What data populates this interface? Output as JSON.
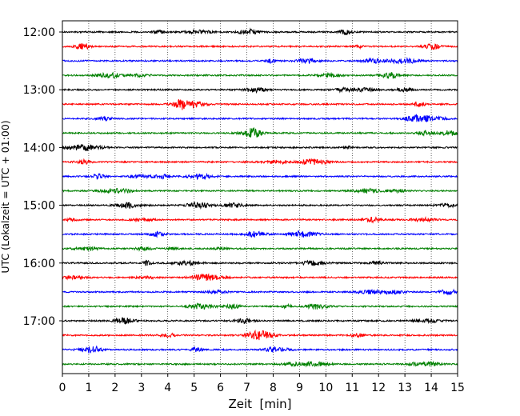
{
  "chart_data": {
    "type": "line",
    "title": "",
    "xlabel": "Zeit  [min]",
    "ylabel": "UTC (Lokalzeit = UTC + 01:00)",
    "xlim": [
      0,
      15
    ],
    "x_ticks": [
      0,
      1,
      2,
      3,
      4,
      5,
      6,
      7,
      8,
      9,
      10,
      11,
      12,
      13,
      14,
      15
    ],
    "y_tick_labels": [
      "12:00",
      "13:00",
      "14:00",
      "15:00",
      "16:00",
      "17:00"
    ],
    "traces_per_hour": 4,
    "trace_minutes": 15,
    "grid": "vertical dotted at each minute",
    "trace_colors": [
      "#000000",
      "#ff0000",
      "#0000ff",
      "#008000"
    ],
    "series": [
      {
        "start": "12:00"
      },
      {
        "start": "12:15"
      },
      {
        "start": "12:30"
      },
      {
        "start": "12:45"
      },
      {
        "start": "13:00"
      },
      {
        "start": "13:15"
      },
      {
        "start": "13:30"
      },
      {
        "start": "13:45"
      },
      {
        "start": "14:00"
      },
      {
        "start": "14:15"
      },
      {
        "start": "14:30"
      },
      {
        "start": "14:45"
      },
      {
        "start": "15:00"
      },
      {
        "start": "15:15"
      },
      {
        "start": "15:30"
      },
      {
        "start": "15:45"
      },
      {
        "start": "16:00"
      },
      {
        "start": "16:15"
      },
      {
        "start": "16:30"
      },
      {
        "start": "16:45"
      },
      {
        "start": "17:00"
      },
      {
        "start": "17:15"
      },
      {
        "start": "17:30"
      },
      {
        "start": "17:45"
      }
    ]
  }
}
